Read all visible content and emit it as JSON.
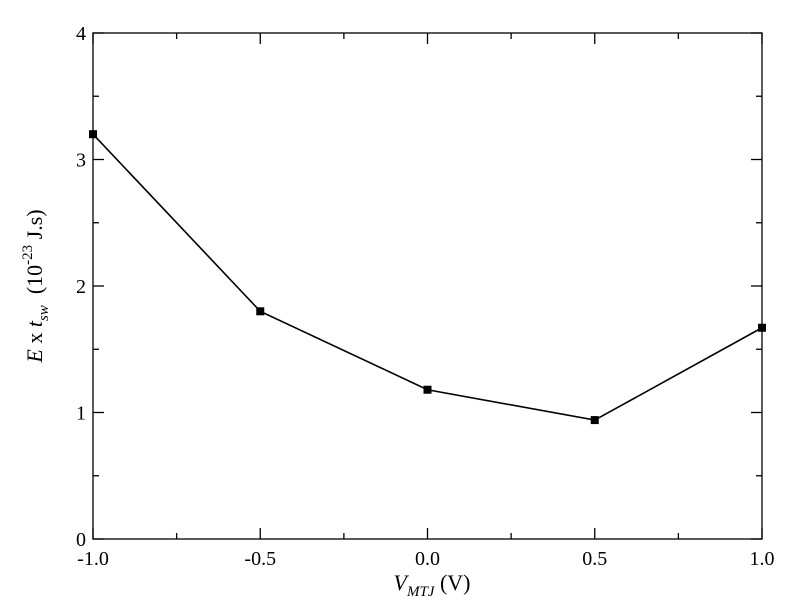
{
  "chart_data": {
    "type": "line",
    "title": "",
    "x": [
      -1.0,
      -0.5,
      0.0,
      0.5,
      1.0
    ],
    "series": [
      {
        "values": [
          3.2,
          1.8,
          1.18,
          0.94,
          1.67
        ],
        "color": "#000000",
        "marker": "square"
      }
    ],
    "xlim": [
      -1.0,
      1.0
    ],
    "ylim": [
      0,
      4
    ],
    "xticks": [
      -1.0,
      -0.5,
      0.0,
      0.5,
      1.0
    ],
    "xtick_labels": [
      "-1.0",
      "-0.5",
      "0.0",
      "0.5",
      "1.0"
    ],
    "yticks": [
      0,
      1,
      2,
      3,
      4
    ],
    "ytick_labels": [
      "0",
      "1",
      "2",
      "3",
      "4"
    ],
    "grid": false,
    "xlabel": {
      "main": "V",
      "sub": "MTJ",
      "unit": " (V)"
    },
    "ylabel": {
      "var1": "E",
      "times": " x ",
      "var2": "t",
      "sub": "sw",
      "unit_open": "  (10",
      "exp": "-23",
      "unit_close": " J.s)"
    }
  }
}
